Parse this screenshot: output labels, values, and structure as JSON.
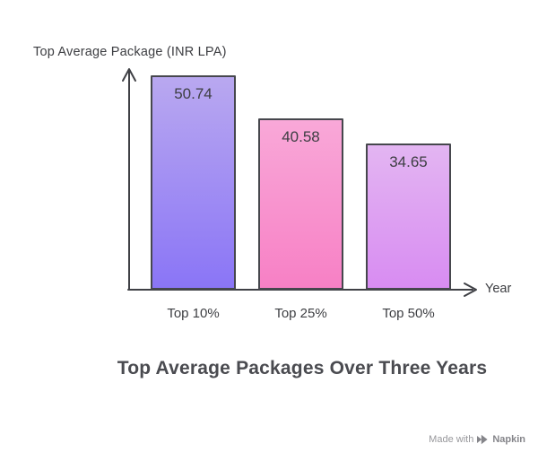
{
  "chart_data": {
    "type": "bar",
    "categories": [
      "Top 10%",
      "Top 25%",
      "Top 50%"
    ],
    "values": [
      50.74,
      40.58,
      34.65
    ],
    "title": "Top Average Packages Over Three Years",
    "xlabel": "Year",
    "ylabel": "Top Average Package (INR LPA)",
    "ylim": [
      0,
      55
    ],
    "grid": false,
    "legend": false,
    "bar_colors": [
      {
        "top": "#b9a8f0",
        "bottom": "#8a75f6"
      },
      {
        "top": "#f9a8d8",
        "bottom": "#f780c5"
      },
      {
        "top": "#e3b5f2",
        "bottom": "#d88cf2"
      }
    ],
    "bar_border_color": "#46474d",
    "axis_color": "#3f4045"
  },
  "colors": {
    "background": "#ffffff",
    "text": "#3d3e42",
    "title": "#4a4b50",
    "watermark": "#97979b"
  },
  "watermark": {
    "text": "Made with",
    "brand": "Napkin"
  }
}
